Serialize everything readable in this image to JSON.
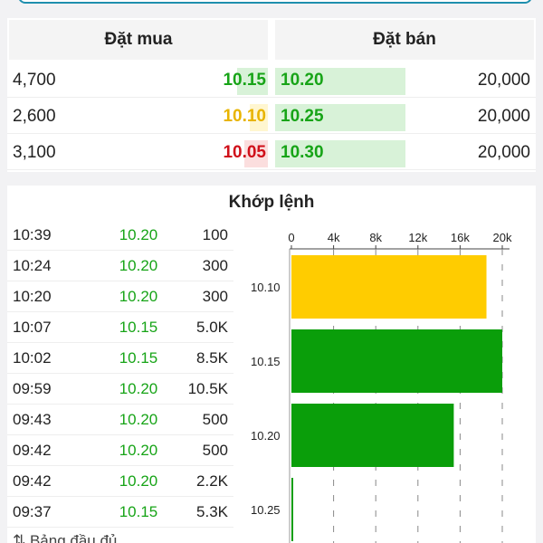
{
  "order_book": {
    "buy_header": "Đặt mua",
    "sell_header": "Đặt bán",
    "rows": [
      {
        "buy_qty": "4,700",
        "buy_price": "10.15",
        "buy_color": "#17a417",
        "buy_bg": "#d8f2d8",
        "sell_price": "10.20",
        "sell_qty": "20,000"
      },
      {
        "buy_qty": "2,600",
        "buy_price": "10.10",
        "buy_color": "#e8b400",
        "buy_bg": "#fff6d0",
        "sell_price": "10.25",
        "sell_qty": "20,000"
      },
      {
        "buy_qty": "3,100",
        "buy_price": "10.05",
        "buy_color": "#d0101a",
        "buy_bg": "#fbdede",
        "sell_price": "10.30",
        "sell_qty": "20,000"
      }
    ]
  },
  "matched": {
    "title": "Khớp lệnh",
    "trades": [
      {
        "time": "10:39",
        "price": "10.20",
        "volume": "100"
      },
      {
        "time": "10:24",
        "price": "10.20",
        "volume": "300"
      },
      {
        "time": "10:20",
        "price": "10.20",
        "volume": "300"
      },
      {
        "time": "10:07",
        "price": "10.15",
        "volume": "5.0K"
      },
      {
        "time": "10:02",
        "price": "10.15",
        "volume": "8.5K"
      },
      {
        "time": "09:59",
        "price": "10.20",
        "volume": "10.5K"
      },
      {
        "time": "09:43",
        "price": "10.20",
        "volume": "500"
      },
      {
        "time": "09:42",
        "price": "10.20",
        "volume": "500"
      },
      {
        "time": "09:42",
        "price": "10.20",
        "volume": "2.2K"
      },
      {
        "time": "09:37",
        "price": "10.15",
        "volume": "5.3K"
      }
    ],
    "bottom_partial": "⇅ Bảng đầu đủ"
  },
  "chart_data": {
    "type": "bar",
    "orientation": "horizontal",
    "categories": [
      "10.10",
      "10.15",
      "10.20",
      "10.25"
    ],
    "values": [
      18500,
      20000,
      15400,
      100
    ],
    "colors": [
      "#ffcc00",
      "#0a9e0a",
      "#0a9e0a",
      "#0a9e0a"
    ],
    "xlim": [
      0,
      20000
    ],
    "xticks": [
      "0",
      "4k",
      "8k",
      "12k",
      "16k",
      "20k"
    ],
    "xtick_values": [
      0,
      4000,
      8000,
      12000,
      16000,
      20000
    ],
    "grid": true
  }
}
